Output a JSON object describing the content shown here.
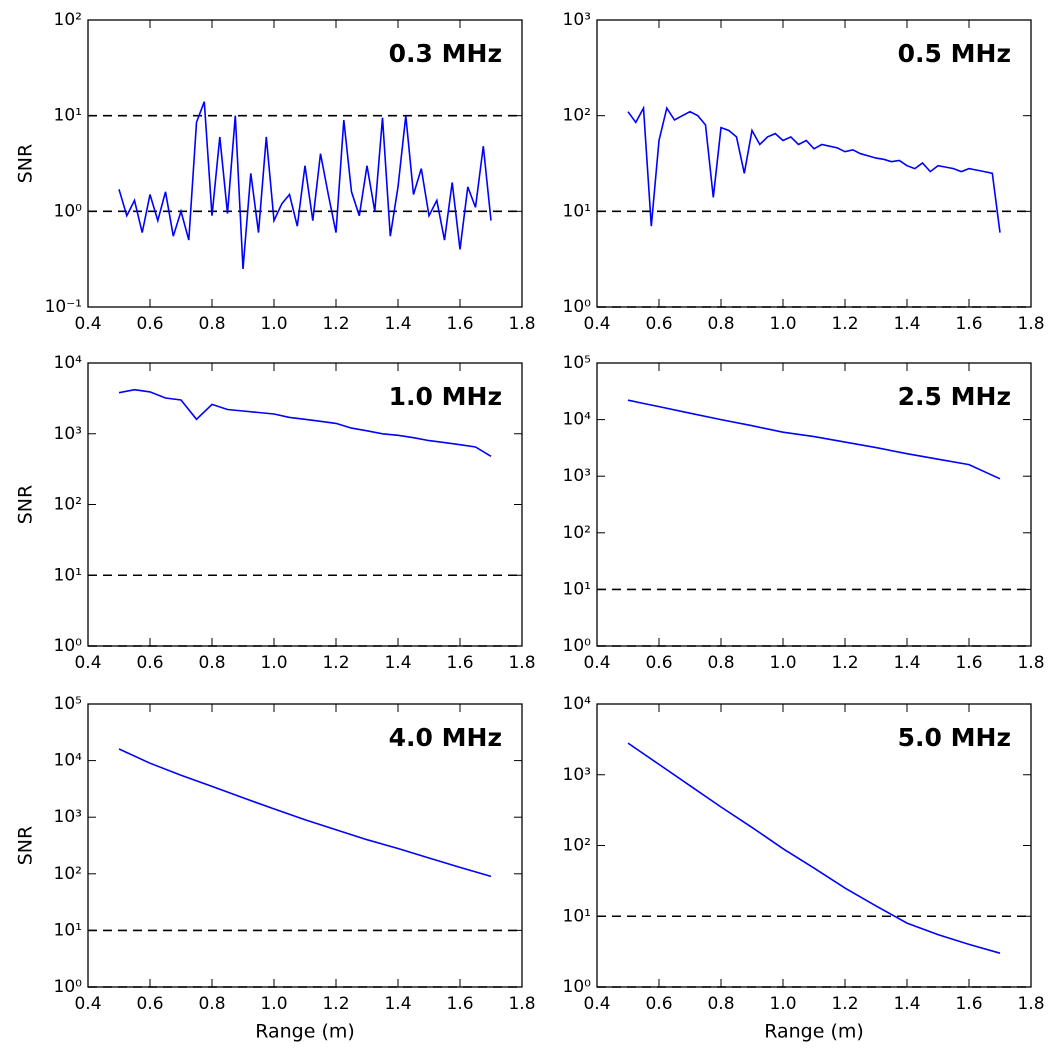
{
  "chart_data": [
    {
      "type": "line",
      "annotation": "0.3 MHz",
      "ylabel": "SNR",
      "log_y": true,
      "ylim": [
        0.1,
        100
      ],
      "yticks": [
        {
          "value": 0.1,
          "label": "10⁻¹"
        },
        {
          "value": 1,
          "label": "10⁰"
        },
        {
          "value": 10,
          "label": "10¹"
        },
        {
          "value": 100,
          "label": "10²"
        }
      ],
      "xlim": [
        0.4,
        1.8
      ],
      "xticks": [
        0.4,
        0.6,
        0.8,
        {
          "value": 1,
          "label": "1.0"
        },
        1.2,
        1.4,
        1.6,
        1.8
      ],
      "hlines": [
        1,
        10
      ],
      "hline_color": "#000000",
      "series": [
        {
          "color": "#0000ff",
          "x": [
            0.5,
            0.525,
            0.55,
            0.575,
            0.6,
            0.625,
            0.65,
            0.675,
            0.7,
            0.725,
            0.75,
            0.775,
            0.8,
            0.825,
            0.85,
            0.875,
            0.9,
            0.925,
            0.95,
            0.975,
            1.0,
            1.025,
            1.05,
            1.075,
            1.1,
            1.125,
            1.15,
            1.175,
            1.2,
            1.225,
            1.25,
            1.275,
            1.3,
            1.325,
            1.35,
            1.375,
            1.4,
            1.425,
            1.45,
            1.475,
            1.5,
            1.525,
            1.55,
            1.575,
            1.6,
            1.625,
            1.65,
            1.675,
            1.7
          ],
          "values": [
            1.7,
            0.9,
            1.3,
            0.6,
            1.5,
            0.8,
            1.6,
            0.55,
            1.0,
            0.5,
            8.5,
            14,
            0.9,
            6,
            0.95,
            10,
            0.25,
            2.5,
            0.6,
            6,
            0.8,
            1.2,
            1.5,
            0.7,
            3,
            0.8,
            4,
            1.5,
            0.6,
            9,
            1.6,
            0.9,
            3,
            1.0,
            9.5,
            0.55,
            1.8,
            10,
            1.5,
            2.8,
            0.9,
            1.3,
            0.5,
            2.0,
            0.4,
            1.8,
            1.1,
            4.8,
            0.8
          ]
        }
      ]
    },
    {
      "type": "line",
      "annotation": "0.5 MHz",
      "log_y": true,
      "ylim": [
        1,
        1000
      ],
      "yticks": [
        {
          "value": 1,
          "label": "10⁰"
        },
        {
          "value": 10,
          "label": "10¹"
        },
        {
          "value": 100,
          "label": "10²"
        },
        {
          "value": 1000,
          "label": "10³"
        }
      ],
      "xlim": [
        0.4,
        1.8
      ],
      "xticks": [
        0.4,
        0.6,
        0.8,
        {
          "value": 1,
          "label": "1.0"
        },
        1.2,
        1.4,
        1.6,
        1.8
      ],
      "hlines": [
        1,
        10
      ],
      "hline_color": "#000000",
      "series": [
        {
          "color": "#0000ff",
          "x": [
            0.5,
            0.525,
            0.55,
            0.575,
            0.6,
            0.625,
            0.65,
            0.675,
            0.7,
            0.725,
            0.75,
            0.775,
            0.8,
            0.825,
            0.85,
            0.875,
            0.9,
            0.925,
            0.95,
            0.975,
            1.0,
            1.025,
            1.05,
            1.075,
            1.1,
            1.125,
            1.15,
            1.175,
            1.2,
            1.225,
            1.25,
            1.275,
            1.3,
            1.325,
            1.35,
            1.375,
            1.4,
            1.425,
            1.45,
            1.475,
            1.5,
            1.525,
            1.55,
            1.575,
            1.6,
            1.625,
            1.65,
            1.675,
            1.7
          ],
          "values": [
            110,
            85,
            120,
            7,
            55,
            120,
            90,
            100,
            110,
            100,
            80,
            14,
            75,
            70,
            60,
            25,
            70,
            50,
            60,
            65,
            55,
            60,
            50,
            55,
            45,
            50,
            48,
            46,
            42,
            44,
            40,
            38,
            36,
            35,
            33,
            34,
            30,
            28,
            32,
            26,
            30,
            29,
            28,
            26,
            28,
            27,
            26,
            25,
            6
          ]
        }
      ]
    },
    {
      "type": "line",
      "annotation": "1.0 MHz",
      "ylabel": "SNR",
      "log_y": true,
      "ylim": [
        1,
        10000
      ],
      "yticks": [
        {
          "value": 1,
          "label": "10⁰"
        },
        {
          "value": 10,
          "label": "10¹"
        },
        {
          "value": 100,
          "label": "10²"
        },
        {
          "value": 1000,
          "label": "10³"
        },
        {
          "value": 10000,
          "label": "10⁴"
        }
      ],
      "xlim": [
        0.4,
        1.8
      ],
      "xticks": [
        0.4,
        0.6,
        0.8,
        {
          "value": 1,
          "label": "1.0"
        },
        1.2,
        1.4,
        1.6,
        1.8
      ],
      "hlines": [
        1,
        10
      ],
      "hline_color": "#000000",
      "series": [
        {
          "color": "#0000ff",
          "x": [
            0.5,
            0.55,
            0.6,
            0.65,
            0.7,
            0.75,
            0.8,
            0.85,
            0.9,
            0.95,
            1.0,
            1.05,
            1.1,
            1.15,
            1.2,
            1.25,
            1.3,
            1.35,
            1.4,
            1.45,
            1.5,
            1.55,
            1.6,
            1.65,
            1.7
          ],
          "values": [
            3800,
            4200,
            3900,
            3200,
            3000,
            1600,
            2600,
            2200,
            2100,
            2000,
            1900,
            1700,
            1600,
            1500,
            1400,
            1200,
            1100,
            1000,
            950,
            880,
            800,
            750,
            700,
            650,
            480
          ]
        }
      ]
    },
    {
      "type": "line",
      "annotation": "2.5 MHz",
      "log_y": true,
      "ylim": [
        1,
        100000
      ],
      "yticks": [
        {
          "value": 1,
          "label": "10⁰"
        },
        {
          "value": 10,
          "label": "10¹"
        },
        {
          "value": 100,
          "label": "10²"
        },
        {
          "value": 1000,
          "label": "10³"
        },
        {
          "value": 10000,
          "label": "10⁴"
        },
        {
          "value": 100000,
          "label": "10⁵"
        }
      ],
      "xlim": [
        0.4,
        1.8
      ],
      "xticks": [
        0.4,
        0.6,
        0.8,
        {
          "value": 1,
          "label": "1.0"
        },
        1.2,
        1.4,
        1.6,
        1.8
      ],
      "hlines": [
        1,
        10
      ],
      "hline_color": "#000000",
      "series": [
        {
          "color": "#0000ff",
          "x": [
            0.5,
            0.6,
            0.7,
            0.8,
            0.9,
            1.0,
            1.1,
            1.2,
            1.3,
            1.4,
            1.5,
            1.6,
            1.7
          ],
          "values": [
            22000,
            17000,
            13000,
            10000,
            7800,
            6000,
            5000,
            4000,
            3200,
            2500,
            2000,
            1600,
            900
          ]
        }
      ]
    },
    {
      "type": "line",
      "annotation": "4.0 MHz",
      "ylabel": "SNR",
      "xlabel": "Range (m)",
      "log_y": true,
      "ylim": [
        1,
        100000
      ],
      "yticks": [
        {
          "value": 1,
          "label": "10⁰"
        },
        {
          "value": 10,
          "label": "10¹"
        },
        {
          "value": 100,
          "label": "10²"
        },
        {
          "value": 1000,
          "label": "10³"
        },
        {
          "value": 10000,
          "label": "10⁴"
        },
        {
          "value": 100000,
          "label": "10⁵"
        }
      ],
      "xlim": [
        0.4,
        1.8
      ],
      "xticks": [
        0.4,
        0.6,
        0.8,
        {
          "value": 1,
          "label": "1.0"
        },
        1.2,
        1.4,
        1.6,
        1.8
      ],
      "hlines": [
        1,
        10
      ],
      "hline_color": "#000000",
      "series": [
        {
          "color": "#0000ff",
          "x": [
            0.5,
            0.6,
            0.7,
            0.8,
            0.9,
            1.0,
            1.1,
            1.2,
            1.3,
            1.4,
            1.5,
            1.6,
            1.7
          ],
          "values": [
            16000,
            9000,
            5500,
            3500,
            2200,
            1400,
            900,
            600,
            400,
            280,
            190,
            130,
            90
          ]
        }
      ]
    },
    {
      "type": "line",
      "annotation": "5.0 MHz",
      "xlabel": "Range (m)",
      "log_y": true,
      "ylim": [
        1,
        10000
      ],
      "yticks": [
        {
          "value": 1,
          "label": "10⁰"
        },
        {
          "value": 10,
          "label": "10¹"
        },
        {
          "value": 100,
          "label": "10²"
        },
        {
          "value": 1000,
          "label": "10³"
        },
        {
          "value": 10000,
          "label": "10⁴"
        }
      ],
      "xlim": [
        0.4,
        1.8
      ],
      "xticks": [
        0.4,
        0.6,
        0.8,
        {
          "value": 1,
          "label": "1.0"
        },
        1.2,
        1.4,
        1.6,
        1.8
      ],
      "hlines": [
        1,
        10
      ],
      "hline_color": "#000000",
      "series": [
        {
          "color": "#0000ff",
          "x": [
            0.5,
            0.6,
            0.7,
            0.8,
            0.9,
            1.0,
            1.1,
            1.2,
            1.3,
            1.4,
            1.5,
            1.6,
            1.7
          ],
          "values": [
            2800,
            1400,
            700,
            350,
            180,
            90,
            48,
            25,
            14,
            8,
            5.5,
            4,
            3
          ]
        }
      ]
    }
  ]
}
